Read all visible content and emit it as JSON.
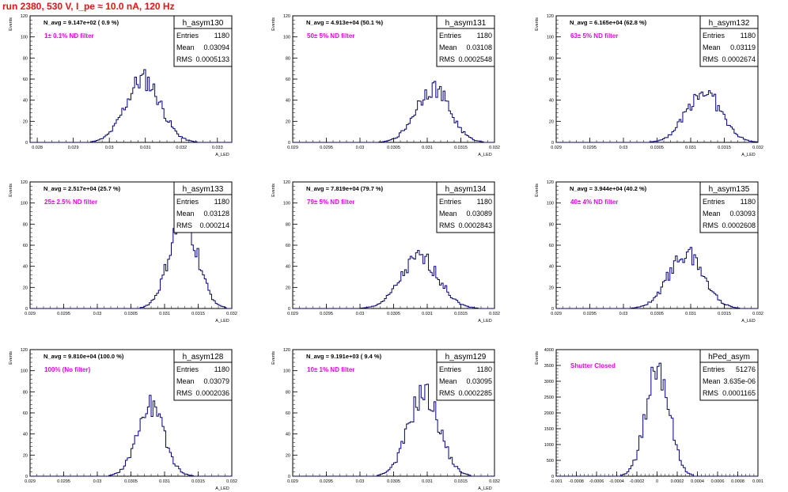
{
  "header": {
    "title": "run 2380,   530 V, I_pe ≈ 10.0 nA, 120 Hz"
  },
  "colors": {
    "hist": "#000080",
    "title_red": "#ee1111",
    "annot": "#ee00ee",
    "frame": "#000000"
  },
  "chart_data": [
    {
      "type": "histogram",
      "name": "h_asym130",
      "ylabel": "Events",
      "xlabel": "A_LED",
      "xlim": [
        0.0278,
        0.0334
      ],
      "ylim": [
        0,
        120
      ],
      "xticks": [
        0.028,
        0.029,
        0.03,
        0.031,
        0.032,
        0.033
      ],
      "xtick_labels": [
        "0.028",
        "0.029",
        "0.03",
        "0.031",
        "0.032",
        "0.033"
      ],
      "yticks": [
        0,
        20,
        40,
        60,
        80,
        100,
        120
      ],
      "stats": {
        "entries": "1180",
        "mean": "0.03094",
        "rms": "0.0005133"
      },
      "n_avg": "N_avg = 9.147e+02 ( 0.9 %)",
      "annotation": "1± 0.1% ND filter",
      "peak": 60,
      "center": 0.03094,
      "width": 0.00048,
      "n_bins": 110
    },
    {
      "type": "histogram",
      "name": "h_asym131",
      "ylabel": "Events",
      "xlabel": "A_LED",
      "xlim": [
        0.029,
        0.032
      ],
      "ylim": [
        0,
        120
      ],
      "xticks": [
        0.029,
        0.0295,
        0.03,
        0.0305,
        0.031,
        0.0315,
        0.032
      ],
      "xtick_labels": [
        "0.029",
        "0.0295",
        "0.03",
        "0.0305",
        "0.031",
        "0.0315",
        "0.032"
      ],
      "yticks": [
        0,
        20,
        40,
        60,
        80,
        100,
        120
      ],
      "stats": {
        "entries": "1180",
        "mean": "0.03108",
        "rms": "0.0002548"
      },
      "n_avg": "N_avg = 4.913e+04 (50.1 %)",
      "annotation": "50± 5% ND filter",
      "peak": 52,
      "center": 0.03108,
      "width": 0.00025,
      "n_bins": 110
    },
    {
      "type": "histogram",
      "name": "h_asym132",
      "ylabel": "Events",
      "xlabel": "A_LED",
      "xlim": [
        0.029,
        0.032
      ],
      "ylim": [
        0,
        120
      ],
      "xticks": [
        0.029,
        0.0295,
        0.03,
        0.0305,
        0.031,
        0.0315,
        0.032
      ],
      "xtick_labels": [
        "0.029",
        "0.0295",
        "0.03",
        "0.0305",
        "0.031",
        "0.0315",
        "0.032"
      ],
      "yticks": [
        0,
        20,
        40,
        60,
        80,
        100,
        120
      ],
      "stats": {
        "entries": "1180",
        "mean": "0.03119",
        "rms": "0.0002674"
      },
      "n_avg": "N_avg = 6.165e+04 (62.8 %)",
      "annotation": "63± 5% ND filter",
      "peak": 48,
      "center": 0.03119,
      "width": 0.00026,
      "n_bins": 110
    },
    {
      "type": "histogram",
      "name": "h_asym133",
      "ylabel": "Events",
      "xlabel": "A_LED",
      "xlim": [
        0.029,
        0.032
      ],
      "ylim": [
        0,
        120
      ],
      "xticks": [
        0.029,
        0.0295,
        0.03,
        0.0305,
        0.031,
        0.0315,
        0.032
      ],
      "xtick_labels": [
        "0.029",
        "0.0295",
        "0.03",
        "0.0305",
        "0.031",
        "0.0315",
        "0.032"
      ],
      "yticks": [
        0,
        20,
        40,
        60,
        80,
        100,
        120
      ],
      "stats": {
        "entries": "1180",
        "mean": "0.03128",
        "rms": "0.000214"
      },
      "n_avg": "N_avg = 2.517e+04 (25.7 %)",
      "annotation": "25± 2.5% ND filter",
      "peak": 84,
      "center": 0.03128,
      "width": 0.00021,
      "n_bins": 110
    },
    {
      "type": "histogram",
      "name": "h_asym134",
      "ylabel": "Events",
      "xlabel": "A_LED",
      "xlim": [
        0.029,
        0.032
      ],
      "ylim": [
        0,
        120
      ],
      "xticks": [
        0.029,
        0.0295,
        0.03,
        0.0305,
        0.031,
        0.0315,
        0.032
      ],
      "xtick_labels": [
        "0.029",
        "0.0295",
        "0.03",
        "0.0305",
        "0.031",
        "0.0315",
        "0.032"
      ],
      "yticks": [
        0,
        20,
        40,
        60,
        80,
        100,
        120
      ],
      "stats": {
        "entries": "1180",
        "mean": "0.03089",
        "rms": "0.0002843"
      },
      "n_avg": "N_avg = 7.819e+04 (79.7 %)",
      "annotation": "79± 5% ND filter",
      "peak": 48,
      "center": 0.03089,
      "width": 0.00028,
      "n_bins": 110
    },
    {
      "type": "histogram",
      "name": "h_asym135",
      "ylabel": "Events",
      "xlabel": "A_LED",
      "xlim": [
        0.029,
        0.032
      ],
      "ylim": [
        0,
        120
      ],
      "xticks": [
        0.029,
        0.0295,
        0.03,
        0.0305,
        0.031,
        0.0315,
        0.032
      ],
      "xtick_labels": [
        "0.029",
        "0.0295",
        "0.03",
        "0.0305",
        "0.031",
        "0.0315",
        "0.032"
      ],
      "yticks": [
        0,
        20,
        40,
        60,
        80,
        100,
        120
      ],
      "stats": {
        "entries": "1180",
        "mean": "0.03093",
        "rms": "0.0002608"
      },
      "n_avg": "N_avg = 3.944e+04 (40.2 %)",
      "annotation": "40± 4% ND filter",
      "peak": 52,
      "center": 0.03093,
      "width": 0.00026,
      "n_bins": 110
    },
    {
      "type": "histogram",
      "name": "h_asym128",
      "ylabel": "Events",
      "xlabel": "A_LED",
      "xlim": [
        0.029,
        0.032
      ],
      "ylim": [
        0,
        120
      ],
      "xticks": [
        0.029,
        0.0295,
        0.03,
        0.0305,
        0.031,
        0.0315,
        0.032
      ],
      "xtick_labels": [
        "0.029",
        "0.0295",
        "0.03",
        "0.0305",
        "0.031",
        "0.0315",
        "0.032"
      ],
      "yticks": [
        0,
        20,
        40,
        60,
        80,
        100,
        120
      ],
      "stats": {
        "entries": "1180",
        "mean": "0.03079",
        "rms": "0.0002036"
      },
      "n_avg": "N_avg = 9.810e+04 (100.0 %)",
      "annotation": "100% (No filter)",
      "peak": 66,
      "center": 0.03079,
      "width": 0.0002,
      "n_bins": 110
    },
    {
      "type": "histogram",
      "name": "h_asym129",
      "ylabel": "Events",
      "xlabel": "A_LED",
      "xlim": [
        0.029,
        0.032
      ],
      "ylim": [
        0,
        120
      ],
      "xticks": [
        0.029,
        0.0295,
        0.03,
        0.0305,
        0.031,
        0.0315,
        0.032
      ],
      "xtick_labels": [
        "0.029",
        "0.0295",
        "0.03",
        "0.0305",
        "0.031",
        "0.0315",
        "0.032"
      ],
      "yticks": [
        0,
        20,
        40,
        60,
        80,
        100,
        120
      ],
      "stats": {
        "entries": "1180",
        "mean": "0.03095",
        "rms": "0.0002285"
      },
      "n_avg": "N_avg = 9.191e+03 ( 9.4 %)",
      "annotation": "10± 1% ND filter",
      "peak": 78,
      "center": 0.03095,
      "width": 0.00023,
      "n_bins": 110
    },
    {
      "type": "histogram",
      "name": "hPed_asym",
      "ylabel": "Events",
      "xlabel": "",
      "xlim": [
        -0.001,
        0.001
      ],
      "ylim": [
        0,
        4000
      ],
      "xticks": [
        -0.001,
        -0.0008,
        -0.0006,
        -0.0004,
        -0.0002,
        0,
        0.0002,
        0.0004,
        0.0006,
        0.0008,
        0.001
      ],
      "xtick_labels": [
        "-0.001",
        "-0.0008",
        "-0.0006",
        "-0.0004",
        "-0.0002",
        "0",
        "0.0002",
        "0.0004",
        "0.0006",
        "0.0008",
        "0.001"
      ],
      "yticks": [
        0,
        500,
        1000,
        1500,
        2000,
        2500,
        3000,
        3500,
        4000
      ],
      "stats": {
        "entries": "51276",
        "mean": "3.635e-06",
        "rms": "0.0001165"
      },
      "n_avg": "",
      "annotation": "Shutter Closed",
      "peak": 3450,
      "center": 3.6e-06,
      "width": 0.000116,
      "n_bins": 100
    }
  ]
}
